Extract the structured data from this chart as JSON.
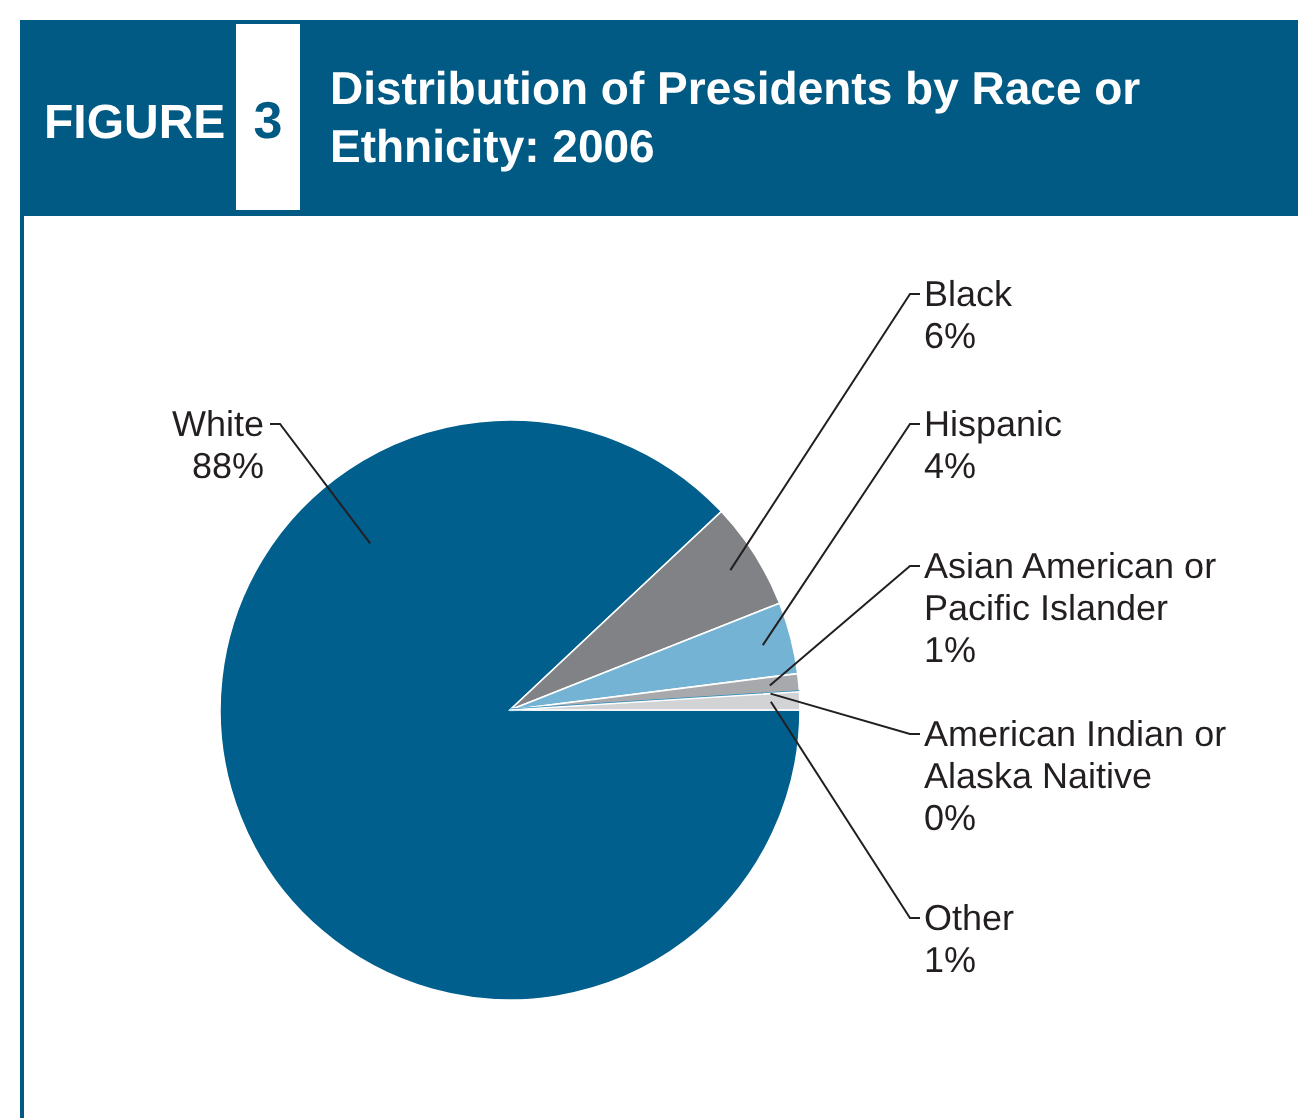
{
  "chart_data": {
    "type": "pie",
    "title": "Distribution of Presidents by Race or Ethnicity: 2006",
    "annotations": [
      "FIGURE",
      "3"
    ],
    "categories": [
      "White",
      "Black",
      "Hispanic",
      "Asian American or Pacific Islander",
      "American Indian or Alaska Naitive",
      "Other"
    ],
    "values": [
      88,
      6,
      4,
      1,
      0,
      1
    ],
    "colors": [
      "#005f8c",
      "#808285",
      "#74b3d3",
      "#a7a9ac",
      "#2a8bbf",
      "#d1d3d4"
    ],
    "value_labels": [
      "88%",
      "6%",
      "4%",
      "1%",
      "0%",
      "1%"
    ]
  }
}
